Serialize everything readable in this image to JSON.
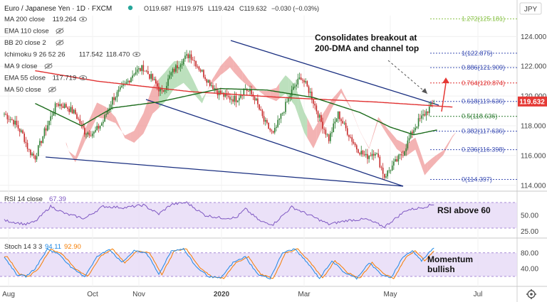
{
  "header": {
    "symbol": "Euro / Japanese Yen · 1D · FXCM",
    "open": "O119.687",
    "high": "H119.975",
    "low": "L119.424",
    "close": "C119.632",
    "change": "−0.030 (−0.03%)",
    "currency": "JPY"
  },
  "legend": [
    {
      "label": "MA 200 close",
      "value": "119.264",
      "value2": "",
      "color": "#e03030"
    },
    {
      "label": "EMA 110 close",
      "value": "",
      "value2": "",
      "color": "#bbbbbb"
    },
    {
      "label": "BB 20 close 2",
      "value": "",
      "value2": "",
      "color": "#bbbbbb"
    },
    {
      "label": "Ichimoku 9 26 52 26",
      "value": "117.542",
      "value2": "118.470",
      "color": "#333333"
    },
    {
      "label": "MA 9 close",
      "value": "",
      "value2": "",
      "color": "#bbbbbb"
    },
    {
      "label": "EMA 55 close",
      "value": "117.719",
      "value2": "",
      "color": "#1b6b1b"
    },
    {
      "label": "MA 50 close",
      "value": "",
      "value2": "",
      "color": "#bbbbbb"
    }
  ],
  "price_label": "119.632",
  "annotations": {
    "main_line1": "Consolidates breakout at",
    "main_line2": "200-DMA and channel top",
    "rsi": "RSI above 60",
    "stoch_line1": "Momentum",
    "stoch_line2": "bullish"
  },
  "fib_levels": [
    {
      "label": "1.272(125.181)",
      "value": 125.181,
      "color": "#8bc34a"
    },
    {
      "label": "1(122.875)",
      "value": 122.875,
      "color": "#3f51b5"
    },
    {
      "label": "0.886(121.909)",
      "value": 121.909,
      "color": "#3f51b5"
    },
    {
      "label": "0.764(120.874)",
      "value": 120.874,
      "color": "#e03030"
    },
    {
      "label": "0.618(119.636)",
      "value": 119.636,
      "color": "#3f51b5"
    },
    {
      "label": "0.5(118.636)",
      "value": 118.636,
      "color": "#2e7d32"
    },
    {
      "label": "0.382(117.636)",
      "value": 117.636,
      "color": "#3f51b5"
    },
    {
      "label": "0.236(116.398)",
      "value": 116.398,
      "color": "#3f51b5"
    },
    {
      "label": "0(114.397)",
      "value": 114.397,
      "color": "#3f51b5"
    }
  ],
  "rsi_panel": {
    "title": "RSI 14 close",
    "value": "67.39"
  },
  "stoch_panel": {
    "title": "Stoch 14 3 3",
    "value_k": "94.11",
    "value_d": "92.90"
  },
  "chart_data": {
    "type": "candlestick",
    "ylim": [
      113.8,
      125.4
    ],
    "yticks": [
      "124.000",
      "122.000",
      "120.000",
      "118.000",
      "116.000",
      "114.000"
    ],
    "ytick_values": [
      124,
      122,
      120,
      118,
      116,
      114
    ],
    "x_labels": [
      "Aug",
      "Oct",
      "Nov",
      "2020",
      "Mar",
      "May",
      "Jul"
    ],
    "price_anchors": [
      [
        0,
        118.8
      ],
      [
        6,
        118.3
      ],
      [
        12,
        117.4
      ],
      [
        16,
        116.3
      ],
      [
        20,
        115.9
      ],
      [
        26,
        117.6
      ],
      [
        34,
        119.5
      ],
      [
        40,
        119.3
      ],
      [
        46,
        118.8
      ],
      [
        52,
        117.6
      ],
      [
        58,
        117.5
      ],
      [
        64,
        118.3
      ],
      [
        70,
        119.8
      ],
      [
        78,
        120.7
      ],
      [
        84,
        121.6
      ],
      [
        90,
        121.9
      ],
      [
        96,
        121.1
      ],
      [
        102,
        120.2
      ],
      [
        108,
        121.5
      ],
      [
        114,
        122.3
      ],
      [
        120,
        122.8
      ],
      [
        126,
        121.9
      ],
      [
        132,
        121.0
      ],
      [
        138,
        120.3
      ],
      [
        144,
        119.9
      ],
      [
        150,
        119.8
      ],
      [
        156,
        120.5
      ],
      [
        162,
        119.9
      ],
      [
        168,
        118.3
      ],
      [
        174,
        117.4
      ],
      [
        180,
        118.9
      ],
      [
        186,
        120.3
      ],
      [
        192,
        121.3
      ],
      [
        198,
        120.2
      ],
      [
        204,
        118.5
      ],
      [
        210,
        117.1
      ],
      [
        216,
        118.8
      ],
      [
        222,
        117.6
      ],
      [
        228,
        116.5
      ],
      [
        234,
        115.9
      ],
      [
        240,
        116.3
      ],
      [
        246,
        114.6
      ],
      [
        252,
        115.4
      ],
      [
        258,
        116.2
      ],
      [
        264,
        117.6
      ],
      [
        268,
        118.3
      ],
      [
        272,
        118.8
      ],
      [
        276,
        119.3
      ],
      [
        278,
        119.6
      ]
    ],
    "ma200_anchors": [
      [
        20,
        121.7
      ],
      [
        60,
        121.0
      ],
      [
        120,
        120.3
      ],
      [
        180,
        119.9
      ],
      [
        240,
        119.6
      ],
      [
        290,
        119.26
      ]
    ],
    "ema55_anchors": [
      [
        20,
        119.5
      ],
      [
        50,
        118.0
      ],
      [
        70,
        119.2
      ],
      [
        100,
        119.6
      ],
      [
        140,
        120.5
      ],
      [
        170,
        120.4
      ],
      [
        200,
        119.9
      ],
      [
        230,
        118.9
      ],
      [
        250,
        117.9
      ],
      [
        265,
        117.4
      ],
      [
        280,
        117.72
      ]
    ],
    "rsi": {
      "ylim": [
        20,
        80
      ],
      "yticks": [
        "50.00",
        "25.00"
      ],
      "ytick_values": [
        50,
        25
      ],
      "upper": 70,
      "lower": 30,
      "anchors": [
        [
          0,
          42
        ],
        [
          14,
          36
        ],
        [
          20,
          40
        ],
        [
          30,
          64
        ],
        [
          40,
          52
        ],
        [
          52,
          45
        ],
        [
          64,
          64
        ],
        [
          78,
          62
        ],
        [
          90,
          66
        ],
        [
          100,
          52
        ],
        [
          108,
          67
        ],
        [
          118,
          70
        ],
        [
          130,
          50
        ],
        [
          140,
          46
        ],
        [
          150,
          46
        ],
        [
          156,
          60
        ],
        [
          166,
          40
        ],
        [
          174,
          36
        ],
        [
          186,
          63
        ],
        [
          196,
          52
        ],
        [
          210,
          36
        ],
        [
          222,
          42
        ],
        [
          234,
          44
        ],
        [
          246,
          32
        ],
        [
          260,
          58
        ],
        [
          270,
          62
        ],
        [
          278,
          67.39
        ]
      ]
    },
    "stoch": {
      "ylim": [
        0,
        105
      ],
      "yticks": [
        "80.00",
        "40.00"
      ],
      "ytick_values": [
        80,
        40
      ],
      "upper": 80,
      "lower": 20,
      "anchors": [
        [
          0,
          70
        ],
        [
          8,
          25
        ],
        [
          14,
          20
        ],
        [
          20,
          40
        ],
        [
          28,
          90
        ],
        [
          36,
          75
        ],
        [
          44,
          40
        ],
        [
          52,
          20
        ],
        [
          60,
          70
        ],
        [
          68,
          90
        ],
        [
          76,
          55
        ],
        [
          84,
          85
        ],
        [
          92,
          80
        ],
        [
          100,
          25
        ],
        [
          108,
          85
        ],
        [
          116,
          90
        ],
        [
          124,
          45
        ],
        [
          132,
          20
        ],
        [
          140,
          15
        ],
        [
          148,
          55
        ],
        [
          156,
          70
        ],
        [
          164,
          25
        ],
        [
          172,
          15
        ],
        [
          180,
          80
        ],
        [
          188,
          90
        ],
        [
          196,
          55
        ],
        [
          204,
          15
        ],
        [
          212,
          60
        ],
        [
          220,
          30
        ],
        [
          228,
          15
        ],
        [
          236,
          55
        ],
        [
          244,
          25
        ],
        [
          250,
          15
        ],
        [
          258,
          70
        ],
        [
          264,
          85
        ],
        [
          270,
          60
        ],
        [
          278,
          94.11
        ]
      ]
    }
  }
}
